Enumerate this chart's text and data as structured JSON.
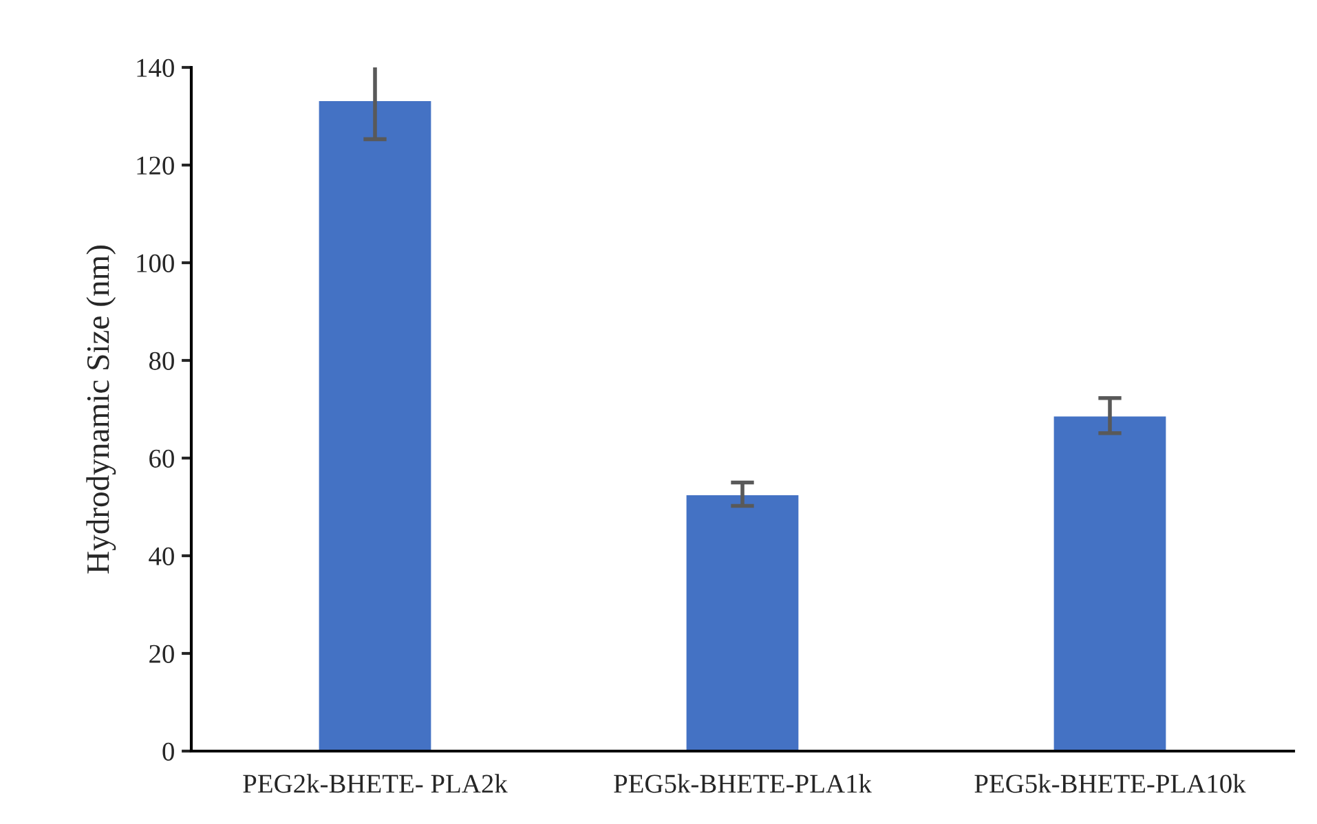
{
  "chart_data": {
    "type": "bar",
    "ylabel": "Hydrodynamic Size (nm)",
    "categories": [
      "PEG2k-BHETE- PLA2k",
      "PEG5k-BHETE-PLA1k",
      "PEG5k-BHETE-PLA10k"
    ],
    "values": [
      133.3,
      52.6,
      68.7
    ],
    "errors": [
      8.0,
      2.4,
      3.6
    ],
    "color": "#4472c4",
    "ylim": [
      0,
      140
    ],
    "yticks": [
      0,
      20,
      40,
      60,
      80,
      100,
      120,
      140
    ],
    "grid": false,
    "legend": false
  }
}
